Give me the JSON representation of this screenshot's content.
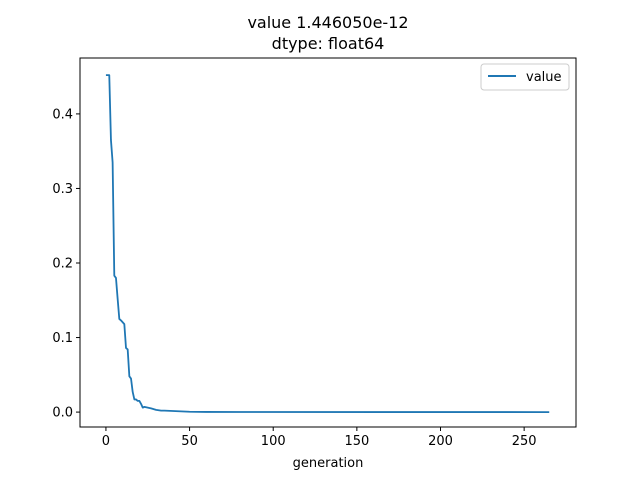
{
  "chart_data": {
    "type": "line",
    "title_line1": "value    1.446050e-12",
    "title_line2": "dtype: float64",
    "xlabel": "generation",
    "ylabel": "",
    "xlim": [
      -15.5,
      281
    ],
    "ylim": [
      -0.02,
      0.475
    ],
    "xticks": [
      0,
      50,
      100,
      150,
      200,
      250
    ],
    "xtick_labels": [
      "0",
      "50",
      "100",
      "150",
      "200",
      "250"
    ],
    "yticks": [
      0.0,
      0.1,
      0.2,
      0.3,
      0.4
    ],
    "ytick_labels": [
      "0.0",
      "0.1",
      "0.2",
      "0.3",
      "0.4"
    ],
    "grid": false,
    "legend_position": "upper right",
    "series": [
      {
        "name": "value",
        "color": "#1f77b4",
        "x": [
          0,
          2,
          3,
          4,
          5,
          6,
          7,
          8,
          9,
          11,
          12,
          13,
          14,
          15,
          16,
          17,
          18,
          19,
          20,
          21,
          22,
          23,
          25,
          27,
          30,
          33,
          35,
          40,
          45,
          50,
          60,
          80,
          265
        ],
        "y": [
          0.452,
          0.452,
          0.365,
          0.335,
          0.183,
          0.18,
          0.152,
          0.125,
          0.123,
          0.118,
          0.086,
          0.084,
          0.048,
          0.045,
          0.027,
          0.017,
          0.017,
          0.015,
          0.015,
          0.011,
          0.006,
          0.007,
          0.006,
          0.005,
          0.003,
          0.002,
          0.002,
          0.0015,
          0.001,
          0.0005,
          0.0002,
          0.0001,
          0.0
        ]
      }
    ]
  }
}
